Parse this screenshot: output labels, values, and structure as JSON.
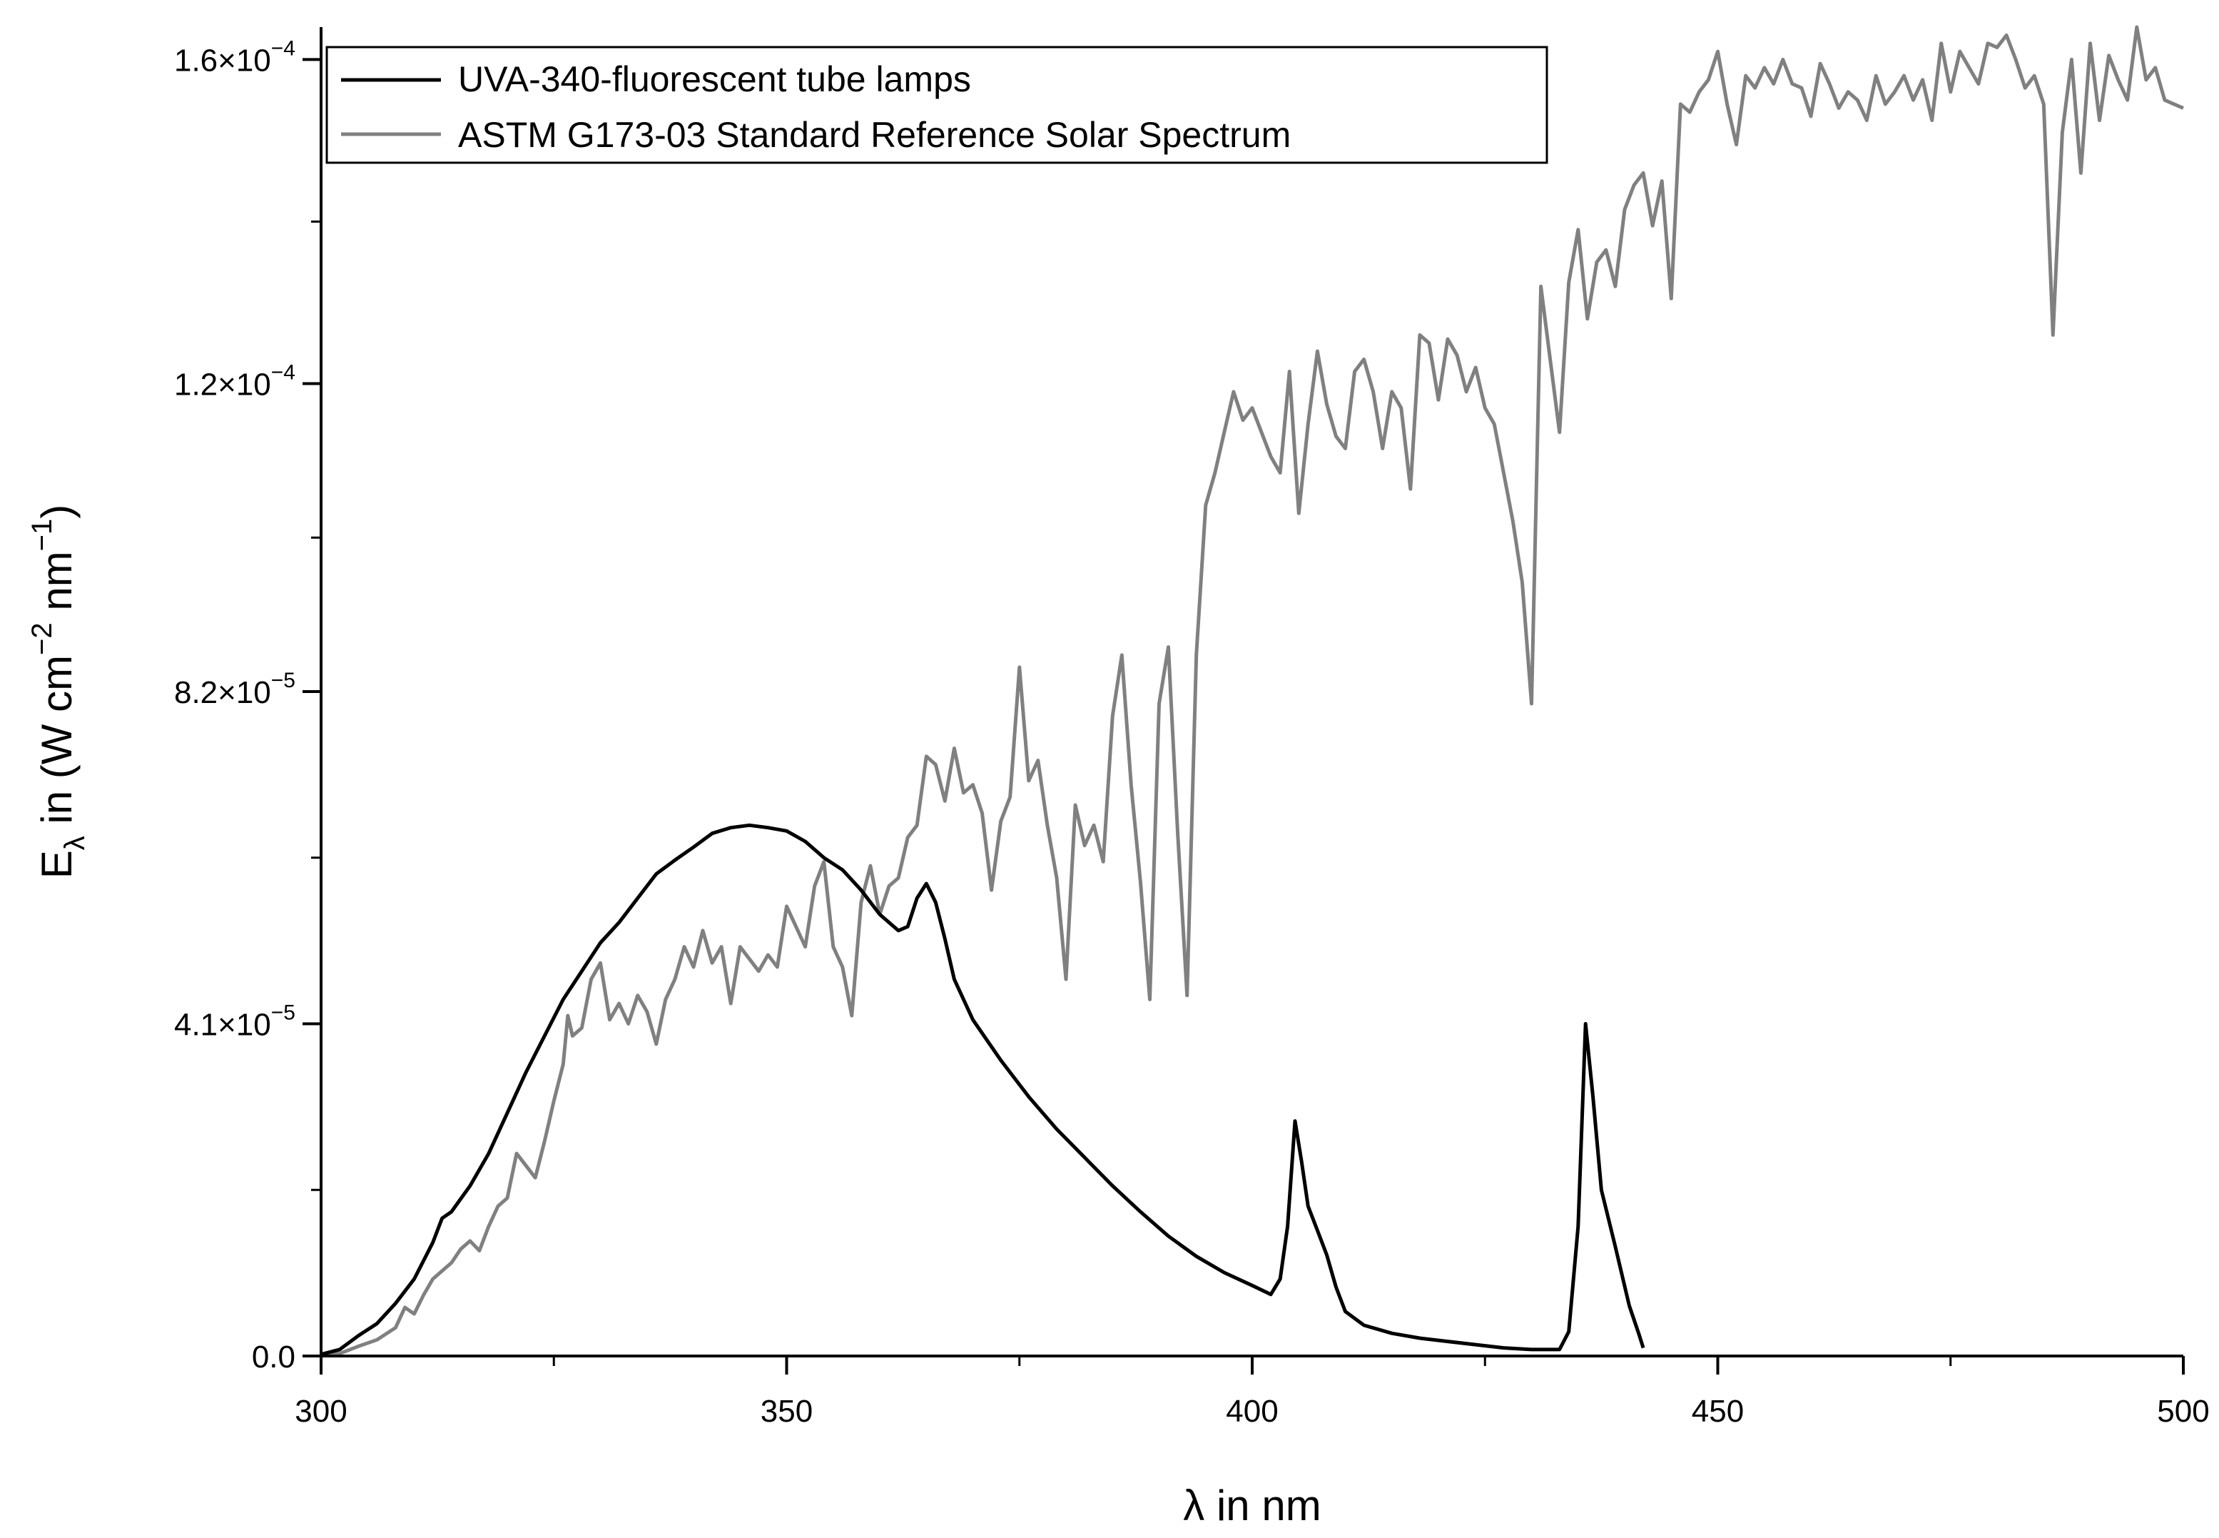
{
  "chart_data": {
    "type": "line",
    "xlabel": "λ in nm",
    "ylabel": {
      "base": "E",
      "sub": "λ",
      "text1": " in (W cm",
      "sup1": "−2",
      "text2": " nm",
      "sup2": "−1",
      "text3": ")"
    },
    "xlim": [
      300,
      500
    ],
    "ylim": [
      0,
      0.000164
    ],
    "x_ticks": [
      {
        "value": 300,
        "label": "300"
      },
      {
        "value": 350,
        "label": "350"
      },
      {
        "value": 400,
        "label": "400"
      },
      {
        "value": 450,
        "label": "450"
      },
      {
        "value": 500,
        "label": "500"
      }
    ],
    "y_ticks": [
      {
        "value": 0,
        "label": "0.0"
      },
      {
        "value": 4.1e-05,
        "mant": "4.1×10",
        "exp": "−5"
      },
      {
        "value": 8.2e-05,
        "mant": "8.2×10",
        "exp": "−5"
      },
      {
        "value": 0.00012,
        "mant": "1.2×10",
        "exp": "−4"
      },
      {
        "value": 0.00016,
        "mant": "1.6×10",
        "exp": "−4"
      }
    ],
    "legend_position": "top-left",
    "series": [
      {
        "name": "UVA-340-fluorescent tube lamps",
        "color": "#000000",
        "points": [
          [
            300,
            2e-07
          ],
          [
            302,
            8e-07
          ],
          [
            304,
            2.5e-06
          ],
          [
            306,
            4e-06
          ],
          [
            308,
            6.5e-06
          ],
          [
            310,
            9.5e-06
          ],
          [
            312,
            1.4e-05
          ],
          [
            313,
            1.7e-05
          ],
          [
            314,
            1.78e-05
          ],
          [
            316,
            2.1e-05
          ],
          [
            318,
            2.5e-05
          ],
          [
            320,
            3e-05
          ],
          [
            322,
            3.5e-05
          ],
          [
            324,
            3.95e-05
          ],
          [
            326,
            4.4e-05
          ],
          [
            328,
            4.75e-05
          ],
          [
            330,
            5.1e-05
          ],
          [
            332,
            5.35e-05
          ],
          [
            334,
            5.65e-05
          ],
          [
            336,
            5.95e-05
          ],
          [
            338,
            6.12e-05
          ],
          [
            340,
            6.28e-05
          ],
          [
            342,
            6.45e-05
          ],
          [
            344,
            6.52e-05
          ],
          [
            346,
            6.55e-05
          ],
          [
            348,
            6.52e-05
          ],
          [
            350,
            6.48e-05
          ],
          [
            352,
            6.35e-05
          ],
          [
            354,
            6.15e-05
          ],
          [
            356,
            6e-05
          ],
          [
            358,
            5.75e-05
          ],
          [
            360,
            5.45e-05
          ],
          [
            362,
            5.25e-05
          ],
          [
            363,
            5.3e-05
          ],
          [
            364,
            5.65e-05
          ],
          [
            365,
            5.83e-05
          ],
          [
            366,
            5.6e-05
          ],
          [
            367,
            5.15e-05
          ],
          [
            368,
            4.65e-05
          ],
          [
            370,
            4.15e-05
          ],
          [
            373,
            3.65e-05
          ],
          [
            376,
            3.2e-05
          ],
          [
            379,
            2.8e-05
          ],
          [
            382,
            2.45e-05
          ],
          [
            385,
            2.1e-05
          ],
          [
            388,
            1.78e-05
          ],
          [
            391,
            1.48e-05
          ],
          [
            394,
            1.23e-05
          ],
          [
            397,
            1.03e-05
          ],
          [
            400,
            8.7e-06
          ],
          [
            402,
            7.6e-06
          ],
          [
            403,
            9.5e-06
          ],
          [
            403.8,
            1.6e-05
          ],
          [
            404.6,
            2.9e-05
          ],
          [
            405.3,
            2.4e-05
          ],
          [
            406,
            1.85e-05
          ],
          [
            407,
            1.55e-05
          ],
          [
            408,
            1.25e-05
          ],
          [
            409,
            8.5e-06
          ],
          [
            410,
            5.5e-06
          ],
          [
            412,
            3.8e-06
          ],
          [
            415,
            2.8e-06
          ],
          [
            418,
            2.2e-06
          ],
          [
            421,
            1.8e-06
          ],
          [
            424,
            1.4e-06
          ],
          [
            427,
            1e-06
          ],
          [
            430,
            8e-07
          ],
          [
            433,
            8e-07
          ],
          [
            434,
            3e-06
          ],
          [
            435,
            1.6e-05
          ],
          [
            435.8,
            4.1e-05
          ],
          [
            436.6,
            3.2e-05
          ],
          [
            437.5,
            2.05e-05
          ],
          [
            439,
            1.35e-05
          ],
          [
            440.5,
            6.2e-06
          ],
          [
            441.5,
            2.8e-06
          ],
          [
            442,
            1e-06
          ]
        ]
      },
      {
        "name": "ASTM G173-03 Standard Reference Solar Spectrum",
        "color": "#808080",
        "points": [
          [
            300,
            1e-07
          ],
          [
            302,
            3e-07
          ],
          [
            304,
            1.2e-06
          ],
          [
            306,
            2e-06
          ],
          [
            308,
            3.5e-06
          ],
          [
            309,
            6e-06
          ],
          [
            310,
            5.2e-06
          ],
          [
            311,
            7.5e-06
          ],
          [
            312,
            9.5e-06
          ],
          [
            313,
            1.05e-05
          ],
          [
            314,
            1.15e-05
          ],
          [
            315,
            1.32e-05
          ],
          [
            316,
            1.42e-05
          ],
          [
            317,
            1.3e-05
          ],
          [
            318,
            1.6e-05
          ],
          [
            319,
            1.85e-05
          ],
          [
            320,
            1.95e-05
          ],
          [
            321,
            2.5e-05
          ],
          [
            322,
            2.35e-05
          ],
          [
            323,
            2.2e-05
          ],
          [
            324,
            2.65e-05
          ],
          [
            325,
            3.15e-05
          ],
          [
            326,
            3.6e-05
          ],
          [
            326.5,
            4.2e-05
          ],
          [
            327,
            3.95e-05
          ],
          [
            328,
            4.05e-05
          ],
          [
            329,
            4.65e-05
          ],
          [
            330,
            4.85e-05
          ],
          [
            331,
            4.15e-05
          ],
          [
            332,
            4.35e-05
          ],
          [
            333,
            4.1e-05
          ],
          [
            334,
            4.45e-05
          ],
          [
            335,
            4.25e-05
          ],
          [
            336,
            3.85e-05
          ],
          [
            337,
            4.4e-05
          ],
          [
            338,
            4.65e-05
          ],
          [
            339,
            5.05e-05
          ],
          [
            340,
            4.8e-05
          ],
          [
            341,
            5.25e-05
          ],
          [
            342,
            4.85e-05
          ],
          [
            343,
            5.05e-05
          ],
          [
            344,
            4.35e-05
          ],
          [
            345,
            5.05e-05
          ],
          [
            346,
            4.9e-05
          ],
          [
            347,
            4.75e-05
          ],
          [
            348,
            4.95e-05
          ],
          [
            349,
            4.8e-05
          ],
          [
            350,
            5.55e-05
          ],
          [
            351,
            5.3e-05
          ],
          [
            352,
            5.05e-05
          ],
          [
            353,
            5.8e-05
          ],
          [
            354,
            6.1e-05
          ],
          [
            355,
            5.05e-05
          ],
          [
            356,
            4.8e-05
          ],
          [
            357,
            4.2e-05
          ],
          [
            358,
            5.6e-05
          ],
          [
            359,
            6.05e-05
          ],
          [
            360,
            5.45e-05
          ],
          [
            361,
            5.8e-05
          ],
          [
            362,
            5.9e-05
          ],
          [
            363,
            6.4e-05
          ],
          [
            364,
            6.55e-05
          ],
          [
            365,
            7.4e-05
          ],
          [
            366,
            7.3e-05
          ],
          [
            367,
            6.85e-05
          ],
          [
            368,
            7.5e-05
          ],
          [
            369,
            6.95e-05
          ],
          [
            370,
            7.05e-05
          ],
          [
            371,
            6.7e-05
          ],
          [
            372,
            5.75e-05
          ],
          [
            373,
            6.6e-05
          ],
          [
            374,
            6.9e-05
          ],
          [
            375,
            8.5e-05
          ],
          [
            376,
            7.1e-05
          ],
          [
            377,
            7.35e-05
          ],
          [
            378,
            6.55e-05
          ],
          [
            379,
            5.9e-05
          ],
          [
            380,
            4.65e-05
          ],
          [
            381,
            6.8e-05
          ],
          [
            382,
            6.3e-05
          ],
          [
            383,
            6.55e-05
          ],
          [
            384,
            6.1e-05
          ],
          [
            385,
            7.9e-05
          ],
          [
            386,
            8.65e-05
          ],
          [
            387,
            7.05e-05
          ],
          [
            388,
            5.85e-05
          ],
          [
            389,
            4.4e-05
          ],
          [
            390,
            8.05e-05
          ],
          [
            391,
            8.75e-05
          ],
          [
            392,
            6.45e-05
          ],
          [
            393,
            4.45e-05
          ],
          [
            394,
            8.65e-05
          ],
          [
            395,
            0.000105
          ],
          [
            396,
            0.000109
          ],
          [
            397,
            0.000114
          ],
          [
            398,
            0.000119
          ],
          [
            399,
            0.0001155
          ],
          [
            400,
            0.000117
          ],
          [
            401,
            0.000114
          ],
          [
            402,
            0.000111
          ],
          [
            403,
            0.000109
          ],
          [
            404,
            0.0001215
          ],
          [
            405,
            0.000104
          ],
          [
            406,
            0.000115
          ],
          [
            407,
            0.000124
          ],
          [
            408,
            0.0001175
          ],
          [
            409,
            0.0001135
          ],
          [
            410,
            0.000112
          ],
          [
            411,
            0.0001215
          ],
          [
            412,
            0.000123
          ],
          [
            413,
            0.000119
          ],
          [
            414,
            0.000112
          ],
          [
            415,
            0.000119
          ],
          [
            416,
            0.000117
          ],
          [
            417,
            0.000107
          ],
          [
            418,
            0.000126
          ],
          [
            419,
            0.000125
          ],
          [
            420,
            0.000118
          ],
          [
            421,
            0.0001255
          ],
          [
            422,
            0.0001235
          ],
          [
            423,
            0.000119
          ],
          [
            424,
            0.000122
          ],
          [
            425,
            0.000117
          ],
          [
            426,
            0.000115
          ],
          [
            427,
            0.000109
          ],
          [
            428,
            0.000103
          ],
          [
            429,
            9.55e-05
          ],
          [
            430,
            8.05e-05
          ],
          [
            431,
            0.000132
          ],
          [
            432,
            0.000123
          ],
          [
            433,
            0.000114
          ],
          [
            434,
            0.0001325
          ],
          [
            435,
            0.000139
          ],
          [
            436,
            0.000128
          ],
          [
            437,
            0.000135
          ],
          [
            438,
            0.0001365
          ],
          [
            439,
            0.000132
          ],
          [
            440,
            0.0001415
          ],
          [
            441,
            0.0001445
          ],
          [
            442,
            0.000146
          ],
          [
            443,
            0.0001395
          ],
          [
            444,
            0.000145
          ],
          [
            445,
            0.0001305
          ],
          [
            446,
            0.0001545
          ],
          [
            447,
            0.0001535
          ],
          [
            448,
            0.000156
          ],
          [
            449,
            0.0001575
          ],
          [
            450,
            0.000161
          ],
          [
            451,
            0.0001545
          ],
          [
            452,
            0.0001495
          ],
          [
            453,
            0.000158
          ],
          [
            454,
            0.0001565
          ],
          [
            455,
            0.000159
          ],
          [
            456,
            0.000157
          ],
          [
            457,
            0.00016
          ],
          [
            458,
            0.000157
          ],
          [
            459,
            0.0001565
          ],
          [
            460,
            0.000153
          ],
          [
            461,
            0.0001595
          ],
          [
            462,
            0.000157
          ],
          [
            463,
            0.000154
          ],
          [
            464,
            0.000156
          ],
          [
            465,
            0.000155
          ],
          [
            466,
            0.0001525
          ],
          [
            467,
            0.000158
          ],
          [
            468,
            0.0001545
          ],
          [
            469,
            0.000156
          ],
          [
            470,
            0.000158
          ],
          [
            471,
            0.000155
          ],
          [
            472,
            0.0001575
          ],
          [
            473,
            0.0001525
          ],
          [
            474,
            0.000162
          ],
          [
            475,
            0.000156
          ],
          [
            476,
            0.000161
          ],
          [
            477,
            0.000159
          ],
          [
            478,
            0.000157
          ],
          [
            479,
            0.000162
          ],
          [
            480,
            0.0001615
          ],
          [
            481,
            0.000163
          ],
          [
            482,
            0.00016
          ],
          [
            483,
            0.0001565
          ],
          [
            484,
            0.000158
          ],
          [
            485,
            0.0001545
          ],
          [
            486,
            0.000126
          ],
          [
            487,
            0.000151
          ],
          [
            488,
            0.00016
          ],
          [
            489,
            0.000146
          ],
          [
            490,
            0.000162
          ],
          [
            491,
            0.0001525
          ],
          [
            492,
            0.0001605
          ],
          [
            493,
            0.0001575
          ],
          [
            494,
            0.000155
          ],
          [
            495,
            0.000164
          ],
          [
            496,
            0.0001575
          ],
          [
            497,
            0.000159
          ],
          [
            498,
            0.000155
          ],
          [
            499,
            0.0001545
          ],
          [
            500,
            0.000154
          ]
        ]
      }
    ]
  }
}
